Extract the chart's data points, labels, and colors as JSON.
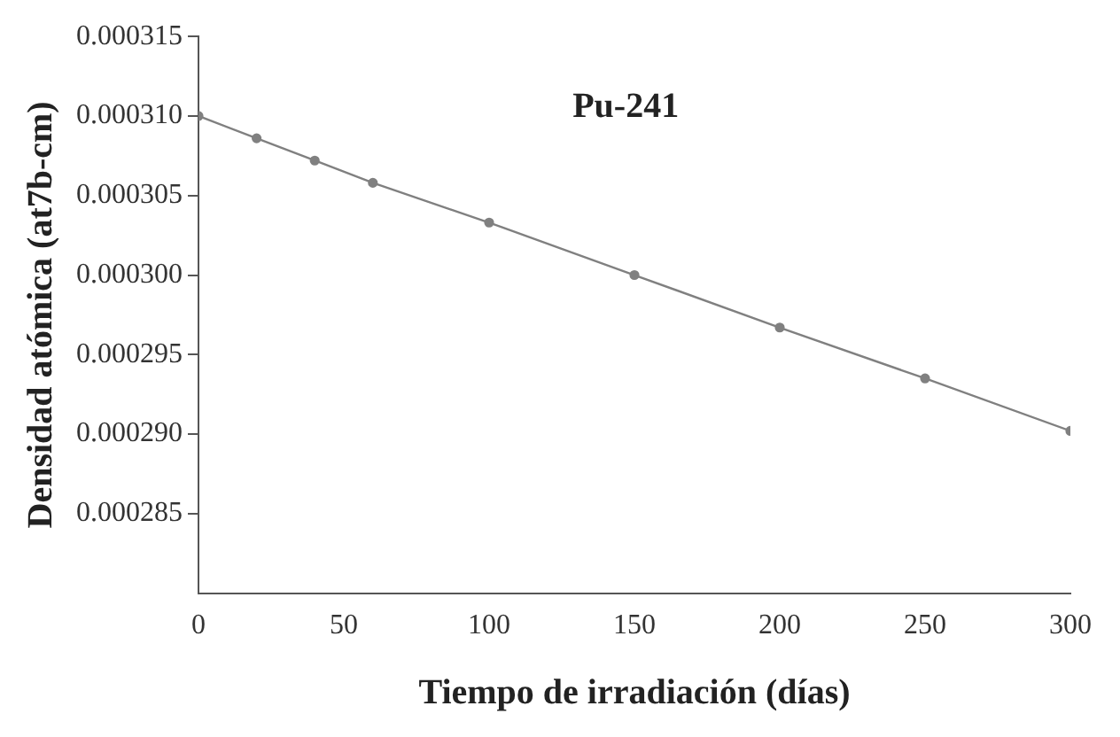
{
  "chart_data": {
    "type": "line",
    "xlabel": "Tiempo de irradiación (días)",
    "ylabel": "Densidad atómica (at7b-cm)",
    "annotations": [
      "Pu-241"
    ],
    "x": [
      0,
      20,
      40,
      60,
      100,
      150,
      200,
      250,
      300
    ],
    "series": [
      {
        "color": "#808080",
        "values": [
          0.00031,
          0.0003086,
          0.0003072,
          0.0003058,
          0.0003033,
          0.0003,
          0.0002967,
          0.0002935,
          0.0002902
        ]
      }
    ],
    "xlim": [
      0,
      300
    ],
    "xticks": [
      0,
      50,
      100,
      150,
      200,
      250,
      300
    ],
    "ylim": [
      0.00028,
      0.000315
    ],
    "yticks": [
      {
        "value": 0.000285,
        "label": "0.000285"
      },
      {
        "value": 0.00029,
        "label": "0.000290"
      },
      {
        "value": 0.000295,
        "label": "0.000295"
      },
      {
        "value": 0.0003,
        "label": "0.000300"
      },
      {
        "value": 0.000305,
        "label": "0.000305"
      },
      {
        "value": 0.00031,
        "label": "0.000310"
      },
      {
        "value": 0.000315,
        "label": "0.000315"
      }
    ],
    "grid": false,
    "legend": false,
    "marker": "circle",
    "line_style": "solid"
  }
}
